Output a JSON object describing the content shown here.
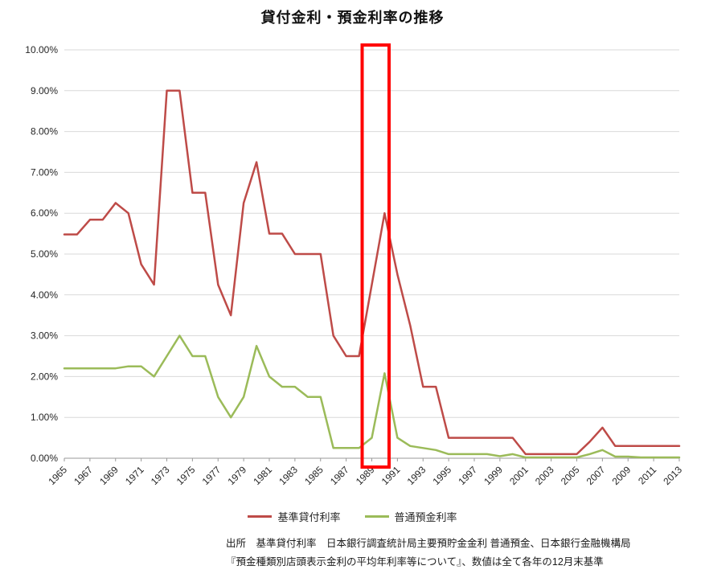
{
  "title": "貸付金利・預金利率の推移",
  "legend": [
    {
      "label": "基準貸付利率",
      "color": "#BE4B48"
    },
    {
      "label": "普通預金利率",
      "color": "#9BBB59"
    }
  ],
  "source": {
    "line1": "出所　基準貸付利率　日本銀行調査統計局主要預貯金金利 普通預金、日本銀行金融機構局",
    "line2": "『預金種類別店頭表示金利の平均年利率等について』、数値は全て各年の12月末基準"
  },
  "chart_data": {
    "type": "line",
    "title": "貸付金利・預金利率の推移",
    "x": [
      1965,
      1966,
      1967,
      1968,
      1969,
      1970,
      1971,
      1972,
      1973,
      1974,
      1975,
      1976,
      1977,
      1978,
      1979,
      1980,
      1981,
      1982,
      1983,
      1984,
      1985,
      1986,
      1987,
      1988,
      1989,
      1990,
      1991,
      1992,
      1993,
      1994,
      1995,
      1996,
      1997,
      1998,
      1999,
      2000,
      2001,
      2002,
      2003,
      2004,
      2005,
      2006,
      2007,
      2008,
      2009,
      2010,
      2011,
      2012,
      2013
    ],
    "series": [
      {
        "name": "基準貸付利率",
        "color": "#BE4B48",
        "values": [
          5.48,
          5.48,
          5.84,
          5.84,
          6.25,
          6.0,
          4.75,
          4.25,
          9.0,
          9.0,
          6.5,
          6.5,
          4.25,
          3.5,
          6.25,
          7.25,
          5.5,
          5.5,
          5.0,
          5.0,
          5.0,
          3.0,
          2.5,
          2.5,
          4.25,
          6.0,
          4.5,
          3.25,
          1.75,
          1.75,
          0.5,
          0.5,
          0.5,
          0.5,
          0.5,
          0.5,
          0.1,
          0.1,
          0.1,
          0.1,
          0.1,
          0.4,
          0.75,
          0.3,
          0.3,
          0.3,
          0.3,
          0.3,
          0.3
        ]
      },
      {
        "name": "普通預金利率",
        "color": "#9BBB59",
        "values": [
          2.2,
          2.2,
          2.2,
          2.2,
          2.2,
          2.25,
          2.25,
          2.0,
          2.5,
          3.0,
          2.5,
          2.5,
          1.5,
          1.0,
          1.5,
          2.75,
          2.0,
          1.75,
          1.75,
          1.5,
          1.5,
          0.25,
          0.25,
          0.25,
          0.5,
          2.08,
          0.5,
          0.3,
          0.25,
          0.2,
          0.1,
          0.1,
          0.1,
          0.1,
          0.05,
          0.1,
          0.02,
          0.02,
          0.02,
          0.02,
          0.02,
          0.1,
          0.2,
          0.04,
          0.04,
          0.02,
          0.02,
          0.02,
          0.02
        ]
      }
    ],
    "ylim": [
      0,
      10
    ],
    "y_tick_step": 1,
    "y_tick_labels": [
      "0.00%",
      "1.00%",
      "2.00%",
      "3.00%",
      "4.00%",
      "5.00%",
      "6.00%",
      "7.00%",
      "8.00%",
      "9.00%",
      "10.00%"
    ],
    "x_tick_labels": [
      "1965",
      "1967",
      "1969",
      "1971",
      "1973",
      "1975",
      "1977",
      "1979",
      "1981",
      "1983",
      "1985",
      "1987",
      "1989",
      "1991",
      "1993",
      "1995",
      "1997",
      "1999",
      "2001",
      "2003",
      "2005",
      "2007",
      "2009",
      "2011",
      "2013"
    ],
    "grid": true,
    "legend_position": "bottom",
    "annotation_highlight": {
      "from_year": 1988.25,
      "to_year": 1990.35,
      "color": "#FF0000"
    }
  }
}
